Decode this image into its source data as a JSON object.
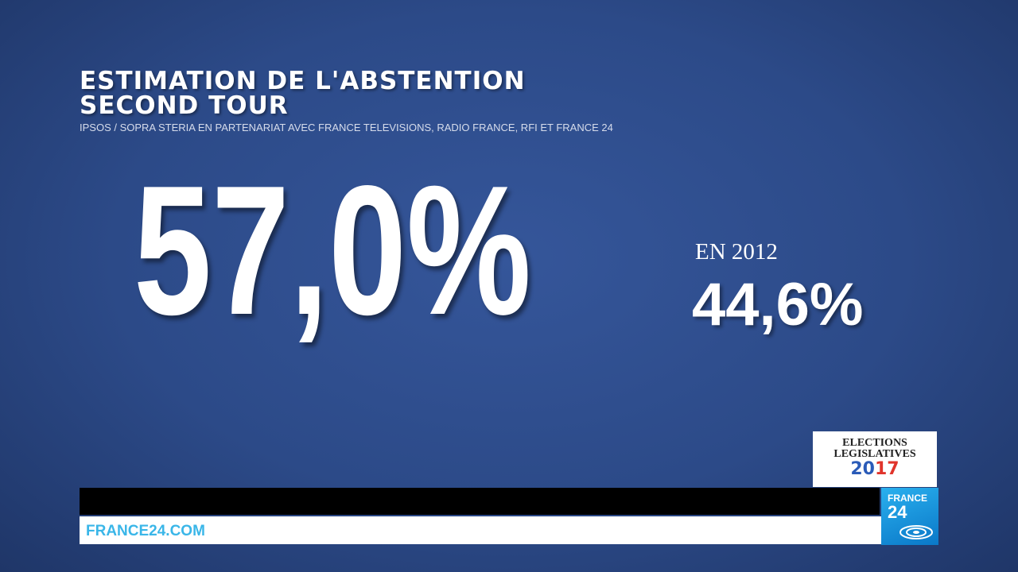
{
  "header": {
    "title_line1": "ESTIMATION DE L'ABSTENTION",
    "title_line2": "SECOND TOUR",
    "source": "IPSOS / SOPRA STERIA EN PARTENARIAT AVEC FRANCE TELEVISIONS, RADIO FRANCE, RFI ET FRANCE 24"
  },
  "main": {
    "value": "57,0%",
    "comparison_label": "EN 2012",
    "comparison_value": "44,6%"
  },
  "badge": {
    "line1": "ELECTIONS",
    "line2": "LEGISLATIVES",
    "year": "2017"
  },
  "channel": {
    "logo_line1": "FRANCE",
    "logo_line2": "24",
    "website": "FRANCE24.COM"
  }
}
